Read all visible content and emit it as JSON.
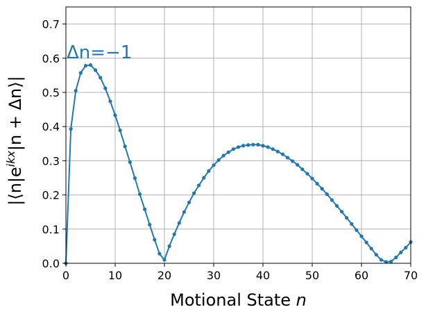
{
  "chart_data": {
    "type": "line",
    "title": "",
    "xlabel": "Motional State n",
    "ylabel": "|⟨n|e^{ikx}|n + Δn⟩|",
    "xlim": [
      0,
      70
    ],
    "ylim": [
      0,
      0.75
    ],
    "xticks": [
      0,
      10,
      20,
      30,
      40,
      50,
      60,
      70
    ],
    "yticks": [
      0.0,
      0.1,
      0.2,
      0.3,
      0.4,
      0.5,
      0.6,
      0.7
    ],
    "xtick_labels": [
      "0",
      "10",
      "20",
      "30",
      "40",
      "50",
      "60",
      "70"
    ],
    "ytick_labels": [
      "0.0",
      "0.1",
      "0.2",
      "0.3",
      "0.4",
      "0.5",
      "0.6",
      "0.7"
    ],
    "grid": true,
    "annotation": "Δn=−1",
    "color": "#1f77b4",
    "series": [
      {
        "x": [
          0,
          1,
          2,
          3,
          4,
          5,
          6,
          7,
          8,
          9,
          10,
          11,
          12,
          13,
          14,
          15,
          16,
          17,
          18,
          19,
          20,
          21,
          22,
          23,
          24,
          25,
          26,
          27,
          28,
          29,
          30,
          31,
          32,
          33,
          34,
          35,
          36,
          37,
          38,
          39,
          40,
          41,
          42,
          43,
          44,
          45,
          46,
          47,
          48,
          49,
          50,
          51,
          52,
          53,
          54,
          55,
          56,
          57,
          58,
          59,
          60,
          61,
          62,
          63,
          64,
          65,
          66,
          67,
          68,
          69,
          70
        ],
        "y": [
          0.0,
          0.393,
          0.505,
          0.557,
          0.578,
          0.58,
          0.565,
          0.543,
          0.512,
          0.474,
          0.433,
          0.389,
          0.342,
          0.296,
          0.249,
          0.202,
          0.158,
          0.113,
          0.069,
          0.028,
          0.01,
          0.05,
          0.085,
          0.118,
          0.15,
          0.178,
          0.205,
          0.228,
          0.25,
          0.27,
          0.287,
          0.302,
          0.315,
          0.325,
          0.334,
          0.34,
          0.344,
          0.346,
          0.347,
          0.347,
          0.344,
          0.34,
          0.334,
          0.327,
          0.319,
          0.309,
          0.299,
          0.288,
          0.275,
          0.262,
          0.248,
          0.233,
          0.218,
          0.202,
          0.185,
          0.168,
          0.151,
          0.133,
          0.115,
          0.097,
          0.079,
          0.061,
          0.043,
          0.025,
          0.01,
          0.004,
          0.005,
          0.017,
          0.032,
          0.046,
          0.062
        ]
      }
    ]
  }
}
